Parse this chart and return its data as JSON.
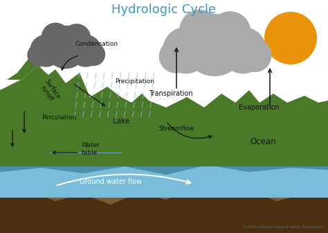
{
  "title": "Hydrologic Cycle",
  "title_color": "#3a9abf",
  "title_fontsize": 13,
  "bg_color": "#ffffff",
  "sky_color": "#ffffff",
  "ocean_light_color": "#aaddf0",
  "ocean_mid_color": "#7bbcda",
  "ocean_dark_color": "#4d8fa8",
  "ground_brown_color": "#7a5c2e",
  "ground_dark_color": "#4a3010",
  "land_green_color": "#4a7a28",
  "rock_purple_color": "#8878a8",
  "cloud_dark_color": "#686868",
  "cloud_light_color": "#aaaaaa",
  "sun_color": "#e8930a",
  "rain_color": "#99bbdd",
  "arrow_color": "#111111",
  "label_color": "#111111",
  "label_fontsize": 6.5,
  "white": "#ffffff",
  "labels": {
    "condensation": "Condensation",
    "precipitation": "Precipitation",
    "surface_runoff": "Surface\nrunoff",
    "percolation": "Percolation",
    "water_table": "Water\ntable",
    "lake": "Lake",
    "streamflow": "Streamflow",
    "transpiration": "Transpiration",
    "evaporation": "Evaporation",
    "ocean": "Ocean",
    "groundwater": "Ground water flow",
    "copyright": "©2008 National Ground Water Association"
  }
}
